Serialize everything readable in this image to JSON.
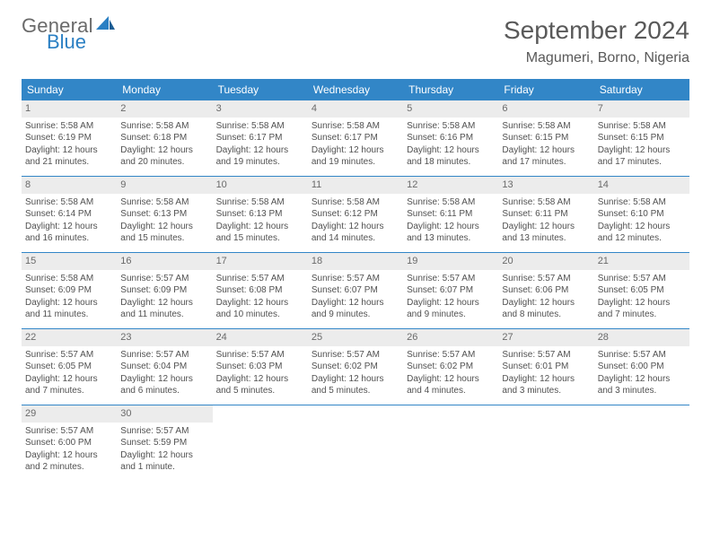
{
  "brand": {
    "line1": "General",
    "line2": "Blue"
  },
  "title": "September 2024",
  "location": "Magumeri, Borno, Nigeria",
  "colors": {
    "header_bg": "#3286c7",
    "header_text": "#ffffff",
    "daynum_bg": "#ececec",
    "text": "#515151",
    "rule": "#3286c7"
  },
  "weekdays": [
    "Sunday",
    "Monday",
    "Tuesday",
    "Wednesday",
    "Thursday",
    "Friday",
    "Saturday"
  ],
  "weeks": [
    [
      {
        "n": "1",
        "sunrise": "Sunrise: 5:58 AM",
        "sunset": "Sunset: 6:19 PM",
        "d1": "Daylight: 12 hours",
        "d2": "and 21 minutes."
      },
      {
        "n": "2",
        "sunrise": "Sunrise: 5:58 AM",
        "sunset": "Sunset: 6:18 PM",
        "d1": "Daylight: 12 hours",
        "d2": "and 20 minutes."
      },
      {
        "n": "3",
        "sunrise": "Sunrise: 5:58 AM",
        "sunset": "Sunset: 6:17 PM",
        "d1": "Daylight: 12 hours",
        "d2": "and 19 minutes."
      },
      {
        "n": "4",
        "sunrise": "Sunrise: 5:58 AM",
        "sunset": "Sunset: 6:17 PM",
        "d1": "Daylight: 12 hours",
        "d2": "and 19 minutes."
      },
      {
        "n": "5",
        "sunrise": "Sunrise: 5:58 AM",
        "sunset": "Sunset: 6:16 PM",
        "d1": "Daylight: 12 hours",
        "d2": "and 18 minutes."
      },
      {
        "n": "6",
        "sunrise": "Sunrise: 5:58 AM",
        "sunset": "Sunset: 6:15 PM",
        "d1": "Daylight: 12 hours",
        "d2": "and 17 minutes."
      },
      {
        "n": "7",
        "sunrise": "Sunrise: 5:58 AM",
        "sunset": "Sunset: 6:15 PM",
        "d1": "Daylight: 12 hours",
        "d2": "and 17 minutes."
      }
    ],
    [
      {
        "n": "8",
        "sunrise": "Sunrise: 5:58 AM",
        "sunset": "Sunset: 6:14 PM",
        "d1": "Daylight: 12 hours",
        "d2": "and 16 minutes."
      },
      {
        "n": "9",
        "sunrise": "Sunrise: 5:58 AM",
        "sunset": "Sunset: 6:13 PM",
        "d1": "Daylight: 12 hours",
        "d2": "and 15 minutes."
      },
      {
        "n": "10",
        "sunrise": "Sunrise: 5:58 AM",
        "sunset": "Sunset: 6:13 PM",
        "d1": "Daylight: 12 hours",
        "d2": "and 15 minutes."
      },
      {
        "n": "11",
        "sunrise": "Sunrise: 5:58 AM",
        "sunset": "Sunset: 6:12 PM",
        "d1": "Daylight: 12 hours",
        "d2": "and 14 minutes."
      },
      {
        "n": "12",
        "sunrise": "Sunrise: 5:58 AM",
        "sunset": "Sunset: 6:11 PM",
        "d1": "Daylight: 12 hours",
        "d2": "and 13 minutes."
      },
      {
        "n": "13",
        "sunrise": "Sunrise: 5:58 AM",
        "sunset": "Sunset: 6:11 PM",
        "d1": "Daylight: 12 hours",
        "d2": "and 13 minutes."
      },
      {
        "n": "14",
        "sunrise": "Sunrise: 5:58 AM",
        "sunset": "Sunset: 6:10 PM",
        "d1": "Daylight: 12 hours",
        "d2": "and 12 minutes."
      }
    ],
    [
      {
        "n": "15",
        "sunrise": "Sunrise: 5:58 AM",
        "sunset": "Sunset: 6:09 PM",
        "d1": "Daylight: 12 hours",
        "d2": "and 11 minutes."
      },
      {
        "n": "16",
        "sunrise": "Sunrise: 5:57 AM",
        "sunset": "Sunset: 6:09 PM",
        "d1": "Daylight: 12 hours",
        "d2": "and 11 minutes."
      },
      {
        "n": "17",
        "sunrise": "Sunrise: 5:57 AM",
        "sunset": "Sunset: 6:08 PM",
        "d1": "Daylight: 12 hours",
        "d2": "and 10 minutes."
      },
      {
        "n": "18",
        "sunrise": "Sunrise: 5:57 AM",
        "sunset": "Sunset: 6:07 PM",
        "d1": "Daylight: 12 hours",
        "d2": "and 9 minutes."
      },
      {
        "n": "19",
        "sunrise": "Sunrise: 5:57 AM",
        "sunset": "Sunset: 6:07 PM",
        "d1": "Daylight: 12 hours",
        "d2": "and 9 minutes."
      },
      {
        "n": "20",
        "sunrise": "Sunrise: 5:57 AM",
        "sunset": "Sunset: 6:06 PM",
        "d1": "Daylight: 12 hours",
        "d2": "and 8 minutes."
      },
      {
        "n": "21",
        "sunrise": "Sunrise: 5:57 AM",
        "sunset": "Sunset: 6:05 PM",
        "d1": "Daylight: 12 hours",
        "d2": "and 7 minutes."
      }
    ],
    [
      {
        "n": "22",
        "sunrise": "Sunrise: 5:57 AM",
        "sunset": "Sunset: 6:05 PM",
        "d1": "Daylight: 12 hours",
        "d2": "and 7 minutes."
      },
      {
        "n": "23",
        "sunrise": "Sunrise: 5:57 AM",
        "sunset": "Sunset: 6:04 PM",
        "d1": "Daylight: 12 hours",
        "d2": "and 6 minutes."
      },
      {
        "n": "24",
        "sunrise": "Sunrise: 5:57 AM",
        "sunset": "Sunset: 6:03 PM",
        "d1": "Daylight: 12 hours",
        "d2": "and 5 minutes."
      },
      {
        "n": "25",
        "sunrise": "Sunrise: 5:57 AM",
        "sunset": "Sunset: 6:02 PM",
        "d1": "Daylight: 12 hours",
        "d2": "and 5 minutes."
      },
      {
        "n": "26",
        "sunrise": "Sunrise: 5:57 AM",
        "sunset": "Sunset: 6:02 PM",
        "d1": "Daylight: 12 hours",
        "d2": "and 4 minutes."
      },
      {
        "n": "27",
        "sunrise": "Sunrise: 5:57 AM",
        "sunset": "Sunset: 6:01 PM",
        "d1": "Daylight: 12 hours",
        "d2": "and 3 minutes."
      },
      {
        "n": "28",
        "sunrise": "Sunrise: 5:57 AM",
        "sunset": "Sunset: 6:00 PM",
        "d1": "Daylight: 12 hours",
        "d2": "and 3 minutes."
      }
    ],
    [
      {
        "n": "29",
        "sunrise": "Sunrise: 5:57 AM",
        "sunset": "Sunset: 6:00 PM",
        "d1": "Daylight: 12 hours",
        "d2": "and 2 minutes."
      },
      {
        "n": "30",
        "sunrise": "Sunrise: 5:57 AM",
        "sunset": "Sunset: 5:59 PM",
        "d1": "Daylight: 12 hours",
        "d2": "and 1 minute."
      },
      {
        "empty": true
      },
      {
        "empty": true
      },
      {
        "empty": true
      },
      {
        "empty": true
      },
      {
        "empty": true
      }
    ]
  ]
}
